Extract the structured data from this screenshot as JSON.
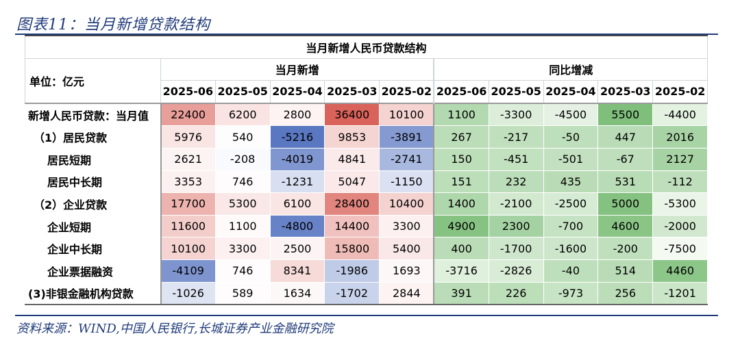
{
  "figure": {
    "caption": "图表11：当月新增贷款结构",
    "table_title": "当月新增人民币贷款结构",
    "unit_label": "单位：亿元",
    "group_new": "当月新增",
    "group_yoy": "同比增减",
    "months": [
      "2025-06",
      "2025-05",
      "2025-04",
      "2025-03",
      "2025-02"
    ],
    "source": "资料来源：WIND,中国人民银行,长城证券产业金融研究院"
  },
  "rows": [
    {
      "label": "新增人民币贷款：当月值",
      "indent": 0,
      "new": [
        "22400",
        "6200",
        "2800",
        "36400",
        "10100"
      ],
      "yoy": [
        "1100",
        "-3300",
        "-4500",
        "5500",
        "-4400"
      ]
    },
    {
      "label": "（1）居民贷款",
      "indent": 1,
      "new": [
        "5976",
        "540",
        "-5216",
        "9853",
        "-3891"
      ],
      "yoy": [
        "267",
        "-217",
        "-50",
        "447",
        "2016"
      ]
    },
    {
      "label": "居民短期",
      "indent": 2,
      "new": [
        "2621",
        "-208",
        "-4019",
        "4841",
        "-2741"
      ],
      "yoy": [
        "150",
        "-451",
        "-501",
        "-67",
        "2127"
      ]
    },
    {
      "label": "居民中长期",
      "indent": 2,
      "new": [
        "3353",
        "746",
        "-1231",
        "5047",
        "-1150"
      ],
      "yoy": [
        "151",
        "232",
        "435",
        "531",
        "-112"
      ]
    },
    {
      "label": "（2）企业贷款",
      "indent": 1,
      "new": [
        "17700",
        "5300",
        "6100",
        "28400",
        "10400"
      ],
      "yoy": [
        "1400",
        "-2100",
        "-2500",
        "5000",
        "-5300"
      ]
    },
    {
      "label": "企业短期",
      "indent": 2,
      "new": [
        "11600",
        "1100",
        "-4800",
        "14400",
        "3300"
      ],
      "yoy": [
        "4900",
        "2300",
        "-700",
        "4600",
        "-2000"
      ]
    },
    {
      "label": "企业中长期",
      "indent": 2,
      "new": [
        "10100",
        "3300",
        "2500",
        "15800",
        "5400"
      ],
      "yoy": [
        "400",
        "-1700",
        "-1600",
        "-200",
        "-7500"
      ]
    },
    {
      "label": "企业票据融资",
      "indent": 2,
      "new": [
        "-4109",
        "746",
        "8341",
        "-1986",
        "1693"
      ],
      "yoy": [
        "-3716",
        "-2826",
        "-40",
        "514",
        "4460"
      ]
    },
    {
      "label": "(3)非银金融机构贷款",
      "indent": 0,
      "new": [
        "-1026",
        "589",
        "1634",
        "-1702",
        "2844"
      ],
      "yoy": [
        "391",
        "226",
        "-973",
        "256",
        "-1201"
      ]
    }
  ],
  "colors": {
    "heat_red": "#d9625a",
    "heat_blue": "#5a77c2",
    "heat_green_dark": "#7fbf7b",
    "heat_green_light": "#f4faf2",
    "accent": "#1f3a7a"
  }
}
